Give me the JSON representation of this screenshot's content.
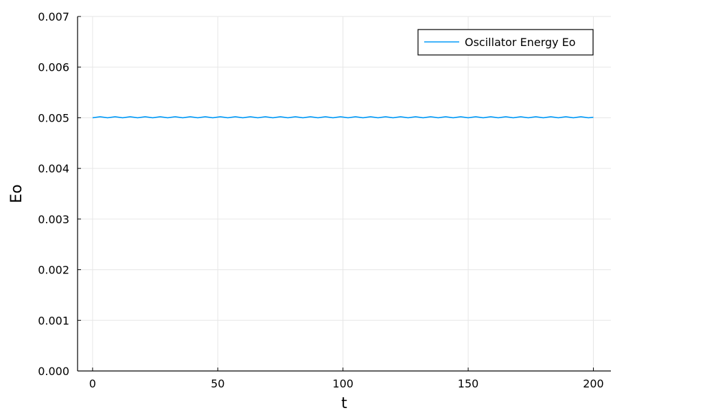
{
  "chart_data": {
    "type": "line",
    "title": "",
    "xlabel": "t",
    "ylabel": "Eo",
    "xlim": [
      -6,
      207
    ],
    "ylim": [
      0.0,
      0.007
    ],
    "xticks": [
      0,
      50,
      100,
      150,
      200
    ],
    "xtick_labels": [
      "0",
      "50",
      "100",
      "150",
      "200"
    ],
    "yticks": [
      0.0,
      0.001,
      0.002,
      0.003,
      0.004,
      0.005,
      0.006,
      0.007
    ],
    "ytick_labels": [
      "0.000",
      "0.001",
      "0.002",
      "0.003",
      "0.004",
      "0.005",
      "0.006",
      "0.007"
    ],
    "grid": true,
    "legend_position": "top-right",
    "series": [
      {
        "name": "Oscillator Energy Eo",
        "color": "#009af9",
        "x": [
          0,
          3,
          6,
          9,
          12,
          15,
          18,
          21,
          24,
          27,
          30,
          33,
          36,
          39,
          42,
          45,
          48,
          51,
          54,
          57,
          60,
          63,
          66,
          69,
          72,
          75,
          78,
          81,
          84,
          87,
          90,
          93,
          96,
          99,
          102,
          105,
          108,
          111,
          114,
          117,
          120,
          123,
          126,
          129,
          132,
          135,
          138,
          141,
          144,
          147,
          150,
          153,
          156,
          159,
          162,
          165,
          168,
          171,
          174,
          177,
          180,
          183,
          186,
          189,
          192,
          195,
          198,
          200
        ],
        "y": [
          0.005,
          0.00502,
          0.005,
          0.00502,
          0.005,
          0.00502,
          0.005,
          0.00502,
          0.005,
          0.00502,
          0.005,
          0.00502,
          0.005,
          0.00502,
          0.005,
          0.00502,
          0.005,
          0.00502,
          0.005,
          0.00502,
          0.005,
          0.00502,
          0.005,
          0.00502,
          0.005,
          0.00502,
          0.005,
          0.00502,
          0.005,
          0.00502,
          0.005,
          0.00502,
          0.005,
          0.00502,
          0.005,
          0.00502,
          0.005,
          0.00502,
          0.005,
          0.00502,
          0.005,
          0.00502,
          0.005,
          0.00502,
          0.005,
          0.00502,
          0.005,
          0.00502,
          0.005,
          0.00502,
          0.005,
          0.00502,
          0.005,
          0.00502,
          0.005,
          0.00502,
          0.005,
          0.00502,
          0.005,
          0.00502,
          0.005,
          0.00502,
          0.005,
          0.00502,
          0.005,
          0.00502,
          0.005,
          0.00501
        ]
      }
    ]
  }
}
